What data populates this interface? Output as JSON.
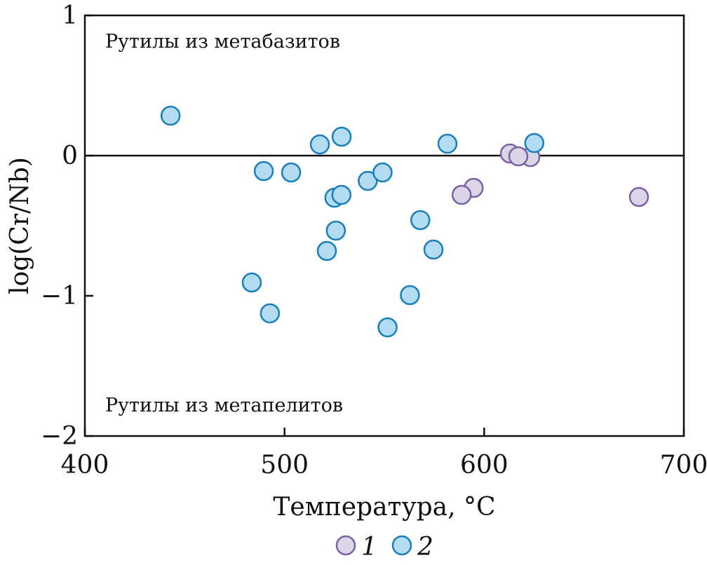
{
  "chart_data": {
    "type": "scatter",
    "xlabel": "Температура, °C",
    "ylabel": "log(Cr/Nb)",
    "xlim": [
      400,
      700
    ],
    "ylim": [
      -2,
      1
    ],
    "xticks": [
      400,
      500,
      600,
      700
    ],
    "yticks": [
      1,
      0,
      -1,
      -2
    ],
    "xtick_labels": [
      "400",
      "500",
      "600",
      "700"
    ],
    "ytick_labels": [
      "1",
      "0",
      "−1",
      "−2"
    ],
    "reference_line_y": 0,
    "annotations": [
      "Рутилы из метабазитов",
      "Рутилы из метапелитов"
    ],
    "legend_position": "bottom-center",
    "series": [
      {
        "name": "1",
        "fill": "#dcd5e8",
        "stroke": "#7b62a3",
        "points": [
          [
            623.1,
            -0.01
          ],
          [
            612.9,
            0.015
          ],
          [
            617.1,
            -0.005
          ],
          [
            594.7,
            -0.23
          ],
          [
            588.7,
            -0.28
          ],
          [
            677.5,
            -0.295
          ]
        ]
      },
      {
        "name": "2",
        "fill": "#b3dcf2",
        "stroke": "#1a80ba",
        "points": [
          [
            442.9,
            0.285
          ],
          [
            517.7,
            0.08
          ],
          [
            528.6,
            0.135
          ],
          [
            489.6,
            -0.11
          ],
          [
            503.3,
            -0.12
          ],
          [
            541.7,
            -0.18
          ],
          [
            549.1,
            -0.12
          ],
          [
            525.0,
            -0.3
          ],
          [
            528.5,
            -0.28
          ],
          [
            581.6,
            0.085
          ],
          [
            625.1,
            0.09
          ],
          [
            568.0,
            -0.46
          ],
          [
            525.7,
            -0.535
          ],
          [
            521.2,
            -0.68
          ],
          [
            574.6,
            -0.67
          ],
          [
            483.6,
            -0.905
          ],
          [
            492.7,
            -1.125
          ],
          [
            562.8,
            -0.995
          ],
          [
            551.6,
            -1.225
          ]
        ]
      }
    ]
  }
}
